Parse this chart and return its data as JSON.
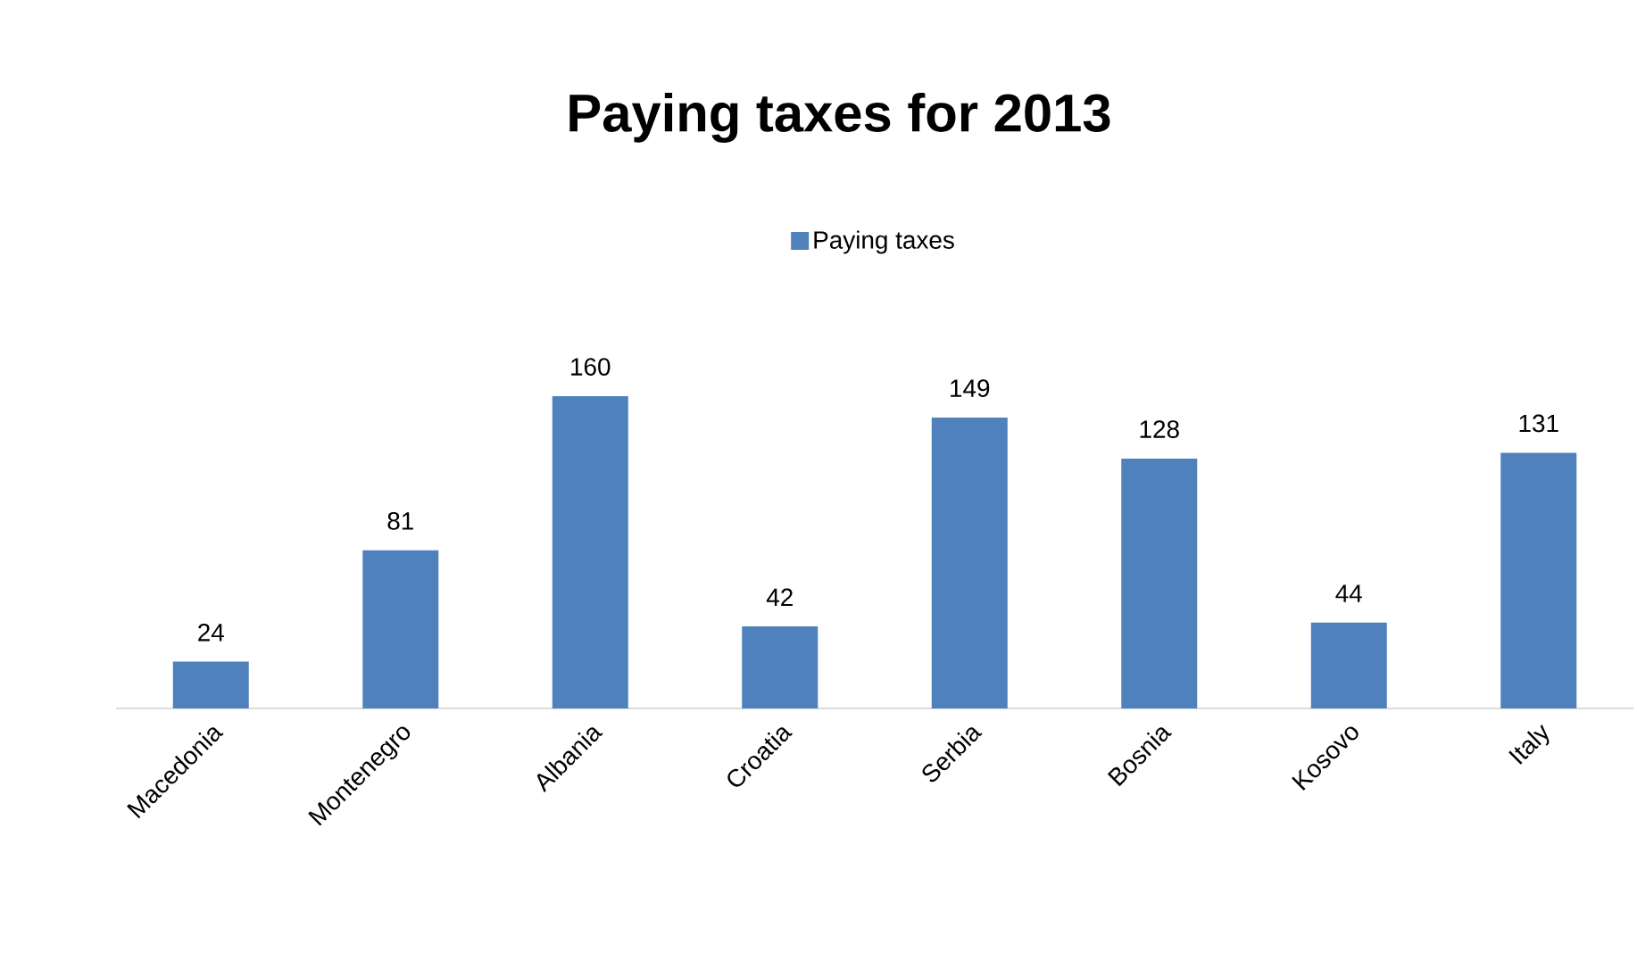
{
  "chart_data": {
    "type": "bar",
    "title": "Paying taxes for 2013",
    "categories": [
      "Macedonia",
      "Montenegro",
      "Albania",
      "Croatia",
      "Serbia",
      "Bosnia",
      "Kosovo",
      "Italy"
    ],
    "series": [
      {
        "name": "Paying taxes",
        "color": "#4f81bd",
        "values": [
          24,
          81,
          160,
          42,
          149,
          128,
          44,
          131
        ]
      }
    ],
    "data_labels": true,
    "legend": "top"
  }
}
